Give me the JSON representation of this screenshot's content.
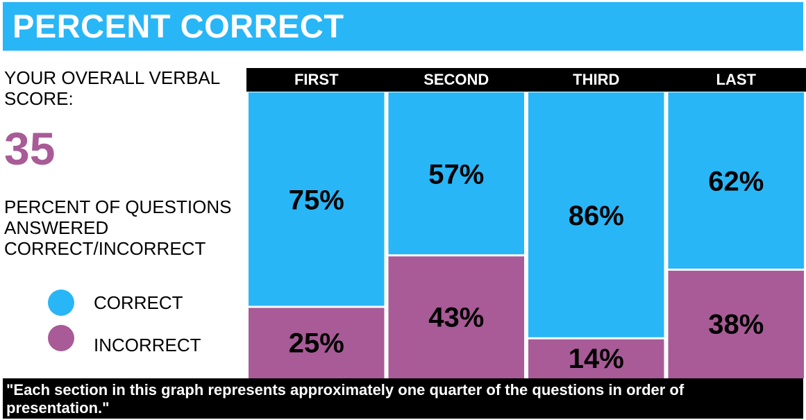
{
  "header": {
    "title": "PERCENT CORRECT"
  },
  "score": {
    "label": "YOUR OVERALL VERBAL SCORE:",
    "value": "35"
  },
  "questions_label": "PERCENT OF QUESTIONS ANSWERED CORRECT/INCORRECT",
  "legend": [
    {
      "label": "CORRECT",
      "color": "#29b6f6"
    },
    {
      "label": "INCORRECT",
      "color": "#a85b96"
    }
  ],
  "colors": {
    "correct": "#29b6f6",
    "incorrect": "#a85b96",
    "header_bar": "#000000",
    "score": "#a85b96"
  },
  "chart_data": {
    "type": "bar",
    "stacked": true,
    "normalized": true,
    "categories": [
      "FIRST",
      "SECOND",
      "THIRD",
      "LAST"
    ],
    "series": [
      {
        "name": "CORRECT",
        "values": [
          75,
          57,
          86,
          62
        ],
        "labels": [
          "75%",
          "57%",
          "86%",
          "62%"
        ]
      },
      {
        "name": "INCORRECT",
        "values": [
          25,
          43,
          14,
          38
        ],
        "labels": [
          "25%",
          "43%",
          "14%",
          "38%"
        ]
      }
    ],
    "ylim": [
      0,
      100
    ],
    "legend": "left"
  },
  "footnote": "\"Each section in this graph represents approximately one quarter of the questions in order of presentation.\""
}
